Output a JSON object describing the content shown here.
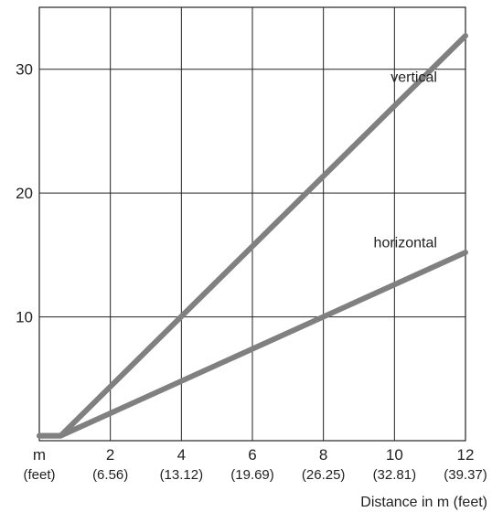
{
  "chart_data": {
    "type": "line",
    "xlabel": "Distance in m (feet)",
    "ylabel": "",
    "title": "",
    "xlim": [
      0,
      12
    ],
    "ylim": [
      0,
      35
    ],
    "grid": true,
    "x_ticks": [
      {
        "value": 2,
        "label": "2",
        "sublabel": "(6.56)"
      },
      {
        "value": 4,
        "label": "4",
        "sublabel": "(13.12)"
      },
      {
        "value": 6,
        "label": "6",
        "sublabel": "(19.69)"
      },
      {
        "value": 8,
        "label": "8",
        "sublabel": "(26.25)"
      },
      {
        "value": 10,
        "label": "10",
        "sublabel": "(32.81)"
      },
      {
        "value": 12,
        "label": "12",
        "sublabel": "(39.37)"
      }
    ],
    "x_unit_label": "m",
    "x_unit_sublabel": "(feet)",
    "y_ticks": [
      {
        "value": 10,
        "label": "10"
      },
      {
        "value": 20,
        "label": "20"
      },
      {
        "value": 30,
        "label": "30"
      }
    ],
    "series": [
      {
        "name": "vertical",
        "color": "#808080",
        "x": [
          0,
          0.6,
          12
        ],
        "y": [
          0.4,
          0.4,
          32.7
        ]
      },
      {
        "name": "horizontal",
        "color": "#808080",
        "x": [
          0,
          0.6,
          12
        ],
        "y": [
          0.4,
          0.4,
          15.2
        ]
      }
    ]
  }
}
